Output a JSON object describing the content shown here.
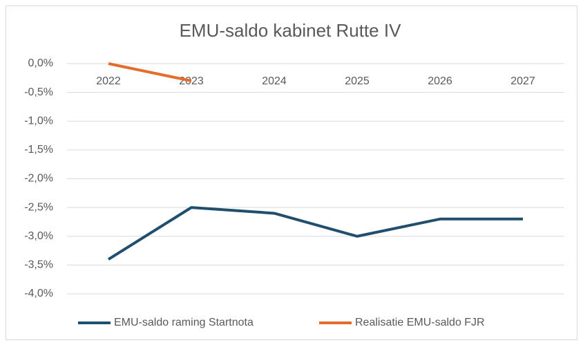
{
  "chart_data": {
    "type": "line",
    "title": "EMU-saldo kabinet Rutte IV",
    "categories": [
      "2022",
      "2023",
      "2024",
      "2025",
      "2026",
      "2027"
    ],
    "series": [
      {
        "name": "EMU-saldo raming Startnota",
        "color": "#1f4e6e",
        "values": [
          -3.4,
          -2.5,
          -2.6,
          -3.0,
          -2.7,
          -2.7
        ]
      },
      {
        "name": "Realisatie EMU-saldo FJR",
        "color": "#e46c2c",
        "values": [
          0.0,
          -0.3,
          null,
          null,
          null,
          null
        ]
      }
    ],
    "ylim": [
      -4,
      0
    ],
    "yticks": [
      {
        "value": 0,
        "label": "0,0%"
      },
      {
        "value": -0.5,
        "label": "-0,5%"
      },
      {
        "value": -1,
        "label": "-1,0%"
      },
      {
        "value": -1.5,
        "label": "-1,5%"
      },
      {
        "value": -2,
        "label": "-2,0%"
      },
      {
        "value": -2.5,
        "label": "-2,5%"
      },
      {
        "value": -3,
        "label": "-3,0%"
      },
      {
        "value": -3.5,
        "label": "-3,5%"
      },
      {
        "value": -4,
        "label": "-4,0%"
      }
    ],
    "grid": true,
    "legend": "bottom"
  }
}
